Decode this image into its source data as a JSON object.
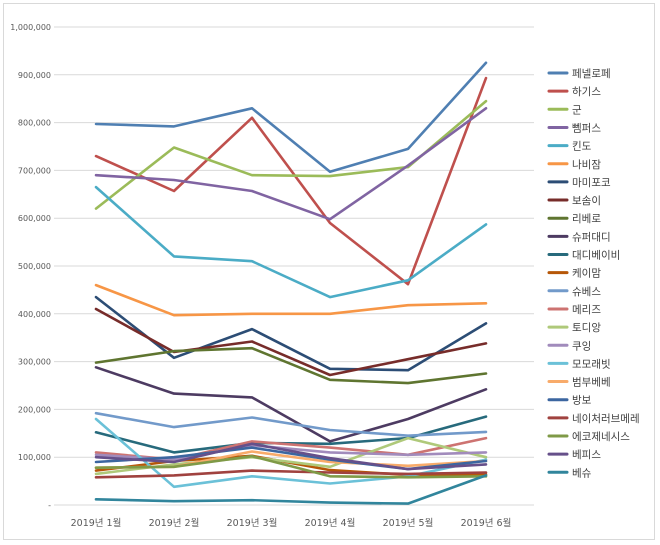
{
  "chart_data": {
    "type": "line",
    "title": "",
    "xlabel": "",
    "ylabel": "",
    "ylim": [
      0,
      1000000
    ],
    "yticks": [
      0,
      100000,
      200000,
      300000,
      400000,
      500000,
      600000,
      700000,
      800000,
      900000,
      1000000
    ],
    "ytick_labels": [
      "-",
      "100,000",
      "200,000",
      "300,000",
      "400,000",
      "500,000",
      "600,000",
      "700,000",
      "800,000",
      "900,000",
      "1,000,000"
    ],
    "categories": [
      "2019년 1월",
      "2019년 2월",
      "2019년 3월",
      "2019년 4월",
      "2019년 5월",
      "2019년 6월"
    ],
    "grid": true,
    "legend_position": "right",
    "series": [
      {
        "name": "페넬로페",
        "color": "#4F7FB2",
        "values": [
          797000,
          792000,
          830000,
          697000,
          745000,
          925000
        ]
      },
      {
        "name": "하기스",
        "color": "#BF504D",
        "values": [
          730000,
          657000,
          810000,
          590000,
          462000,
          893000
        ]
      },
      {
        "name": "군",
        "color": "#9BBB59",
        "values": [
          620000,
          748000,
          690000,
          688000,
          707000,
          845000
        ]
      },
      {
        "name": "뻼퍼스",
        "color": "#8064A2",
        "values": [
          690000,
          680000,
          657000,
          598000,
          710000,
          830000
        ]
      },
      {
        "name": "킨도",
        "color": "#4BACC6",
        "values": [
          665000,
          520000,
          510000,
          435000,
          470000,
          587000
        ]
      },
      {
        "name": "나비잠",
        "color": "#F79646",
        "values": [
          460000,
          397000,
          400000,
          400000,
          418000,
          422000
        ]
      },
      {
        "name": "마미포코",
        "color": "#2C4D75",
        "values": [
          435000,
          308000,
          368000,
          285000,
          282000,
          380000
        ]
      },
      {
        "name": "보솜이",
        "color": "#772C2A",
        "values": [
          410000,
          320000,
          342000,
          272000,
          305000,
          338000
        ]
      },
      {
        "name": "리베로",
        "color": "#5F7530",
        "values": [
          298000,
          322000,
          328000,
          262000,
          255000,
          275000
        ]
      },
      {
        "name": "슈퍼대디",
        "color": "#4D3B62",
        "values": [
          288000,
          233000,
          225000,
          133000,
          180000,
          242000
        ]
      },
      {
        "name": "대디베이비",
        "color": "#276A7C",
        "values": [
          152000,
          110000,
          130000,
          128000,
          140000,
          185000
        ]
      },
      {
        "name": "케이맘",
        "color": "#B65708",
        "values": [
          72000,
          92000,
          103000,
          73000,
          63000,
          64000
        ]
      },
      {
        "name": "슈베스",
        "color": "#729ACA",
        "values": [
          192000,
          163000,
          183000,
          157000,
          145000,
          153000
        ]
      },
      {
        "name": "메리즈",
        "color": "#CD7371",
        "values": [
          110000,
          95000,
          133000,
          120000,
          105000,
          140000
        ]
      },
      {
        "name": "토디앙",
        "color": "#AFC97A",
        "values": [
          65000,
          85000,
          100000,
          80000,
          140000,
          100000
        ]
      },
      {
        "name": "쿠잉",
        "color": "#A18BBC",
        "values": [
          105000,
          95000,
          125000,
          110000,
          105000,
          110000
        ]
      },
      {
        "name": "모모래빗",
        "color": "#6BC1D8",
        "values": [
          180000,
          38000,
          60000,
          45000,
          60000,
          95000
        ]
      },
      {
        "name": "범부베베",
        "color": "#F8AB6A",
        "values": [
          78000,
          80000,
          112000,
          90000,
          82000,
          92000
        ]
      },
      {
        "name": "방보",
        "color": "#3C66A0",
        "values": [
          90000,
          100000,
          120000,
          95000,
          75000,
          92000
        ]
      },
      {
        "name": "네이처러브메레",
        "color": "#A0423F",
        "values": [
          58000,
          62000,
          72000,
          68000,
          65000,
          68000
        ]
      },
      {
        "name": "에코제네시스",
        "color": "#7F9A47",
        "values": [
          78000,
          80000,
          102000,
          60000,
          58000,
          60000
        ]
      },
      {
        "name": "베피스",
        "color": "#66508A",
        "values": [
          100000,
          90000,
          128000,
          98000,
          75000,
          85000
        ]
      },
      {
        "name": "베슈",
        "color": "#31859C",
        "values": [
          12000,
          8000,
          10000,
          5000,
          3000,
          62000
        ]
      }
    ]
  }
}
